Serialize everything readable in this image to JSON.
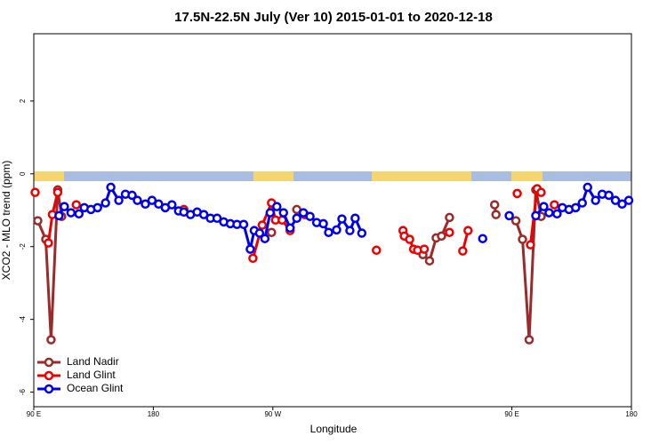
{
  "chart_data": {
    "type": "line",
    "title": "17.5N-22.5N July (Ver 10)   2015-01-01 to 2020-12-18",
    "x_label": "Longitude",
    "y_label": "XCO2 - MLO trend (ppm)",
    "xlim": [
      90,
      540
    ],
    "ylim": [
      -6.4,
      3.85
    ],
    "xticks": [
      {
        "value": 90,
        "label": "90 E"
      },
      {
        "value": 180,
        "label": "180"
      },
      {
        "value": 270,
        "label": "90 W"
      },
      {
        "value": 450,
        "label": "90 E"
      },
      {
        "value": 540,
        "label": "180"
      }
    ],
    "yticks": [
      -6,
      -4,
      -2,
      0,
      2
    ],
    "legend": "bottom-left",
    "series": [
      {
        "name": "Land Nadir",
        "color": "#9b2b2b",
        "x": [
          93,
          99,
          103,
          108,
          111,
          null,
          269,
          null,
          288,
          null,
          383,
          388,
          393,
          397,
          403,
          null,
          437,
          438,
          null,
          453,
          458,
          463,
          468,
          472
        ],
        "values": [
          -1.29,
          -1.8,
          -4.56,
          -0.44,
          -1.17,
          null,
          -1.61,
          null,
          -0.98,
          null,
          -2.22,
          -2.39,
          -1.76,
          -1.71,
          -1.2,
          null,
          -0.85,
          -1.12,
          null,
          -1.29,
          -1.8,
          -4.56,
          -0.44,
          -1.17
        ]
      },
      {
        "name": "Land Glint",
        "color": "#ee0000",
        "x": [
          91,
          null,
          101,
          104,
          108,
          null,
          122,
          null,
          203,
          null,
          255,
          262,
          269,
          272,
          277,
          283,
          null,
          294,
          null,
          348,
          null,
          368,
          369,
          373,
          376,
          379,
          384,
          null,
          403,
          null,
          413,
          417,
          null,
          454,
          null,
          464,
          469,
          472,
          null,
          482
        ],
        "values": [
          -0.51,
          null,
          -1.9,
          -1.12,
          -0.51,
          null,
          -0.85,
          null,
          -0.98,
          null,
          -2.32,
          -1.41,
          -0.8,
          -1.27,
          -1.27,
          -1.56,
          null,
          -1.12,
          null,
          -2.1,
          null,
          -1.56,
          -1.71,
          -1.8,
          -2.07,
          -2.1,
          -2.07,
          null,
          -1.61,
          null,
          -2.12,
          -1.56,
          null,
          -0.54,
          null,
          -1.95,
          -0.41,
          -0.51,
          null,
          -0.85
        ]
      },
      {
        "name": "Ocean Glint",
        "color": "#0000ee",
        "x": [
          109,
          113,
          118,
          124,
          128,
          133,
          138,
          144,
          148,
          154,
          159,
          164,
          168,
          174,
          179,
          184,
          189,
          194,
          199,
          203,
          208,
          213,
          218,
          223,
          228,
          233,
          238,
          243,
          248,
          253,
          256,
          260,
          264,
          268,
          273,
          278,
          283,
          288,
          293,
          298,
          303,
          308,
          312,
          318,
          322,
          328,
          332,
          337,
          null,
          428,
          null,
          448,
          null,
          468,
          474,
          478,
          484,
          488,
          493,
          498,
          503,
          507,
          513,
          518,
          523,
          528,
          533,
          538
        ],
        "values": [
          -1.15,
          -0.9,
          -1.07,
          -1.1,
          -0.93,
          -0.98,
          -0.93,
          -0.8,
          -0.37,
          -0.73,
          -0.56,
          -0.59,
          -0.73,
          -0.83,
          -0.73,
          -0.83,
          -0.93,
          -0.85,
          -1.02,
          -1.05,
          -1.12,
          -1.05,
          -1.12,
          -1.22,
          -1.22,
          -1.32,
          -1.37,
          -1.39,
          -1.39,
          -2.07,
          -1.56,
          -1.63,
          -1.78,
          -1.07,
          -0.9,
          -1.07,
          -1.49,
          -1.22,
          -1.07,
          -1.17,
          -1.34,
          -1.37,
          -1.61,
          -1.54,
          -1.24,
          -1.56,
          -1.22,
          -1.63,
          null,
          -1.78,
          null,
          -1.15,
          null,
          -1.15,
          -0.9,
          -1.07,
          -1.1,
          -0.93,
          -0.98,
          -0.93,
          -0.8,
          -0.37,
          -0.73,
          -0.56,
          -0.59,
          -0.73,
          -0.83,
          -0.73
        ]
      }
    ]
  }
}
